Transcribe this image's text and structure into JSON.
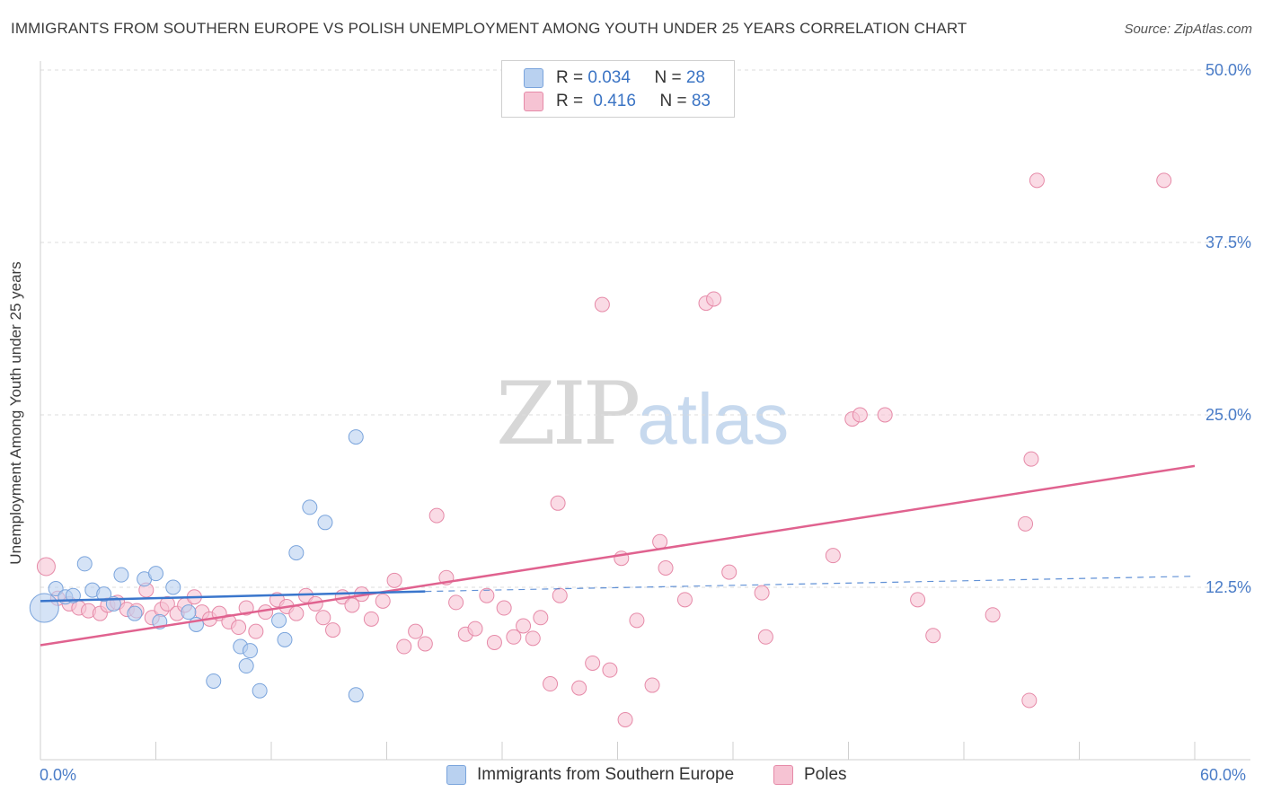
{
  "title": "IMMIGRANTS FROM SOUTHERN EUROPE VS POLISH UNEMPLOYMENT AMONG YOUTH UNDER 25 YEARS CORRELATION CHART",
  "source": "Source: ZipAtlas.com",
  "watermark": {
    "part1": "ZIP",
    "part2": "atlas"
  },
  "legend": {
    "row1": {
      "r_label": "R = ",
      "r_value": "0.034",
      "n_label": "N = ",
      "n_value": "28"
    },
    "row2": {
      "r_label": "R = ",
      "r_value": "0.416",
      "n_label": "N = ",
      "n_value": "83"
    }
  },
  "x_axis": {
    "min_label": "0.0%",
    "max_label": "60.0%"
  },
  "bottom_legend": [
    "Immigrants from Southern Europe",
    "Poles"
  ],
  "colors": {
    "blue_fill": "#b9d1f0",
    "blue_stroke": "#7aa4dc",
    "blue_line": "#3a76cc",
    "pink_fill": "#f6c3d3",
    "pink_stroke": "#e68aa8",
    "pink_line": "#e0628f",
    "grid": "#dcdcdc",
    "tick_text": "#4a7cc7"
  },
  "chart_data": {
    "type": "scatter",
    "title": "IMMIGRANTS FROM SOUTHERN EUROPE VS POLISH UNEMPLOYMENT AMONG YOUTH UNDER 25 YEARS CORRELATION CHART",
    "xlabel": "",
    "ylabel": "Unemployment Among Youth under 25 years",
    "xlim": [
      0,
      60
    ],
    "ylim": [
      0,
      50
    ],
    "y_ticks": [
      12.5,
      25.0,
      37.5,
      50.0
    ],
    "y_tick_labels": [
      "12.5%",
      "25.0%",
      "37.5%",
      "50.0%"
    ],
    "grid": true,
    "legend_position": "top-center",
    "series": [
      {
        "name": "Immigrants from Southern Europe",
        "color": "#7aa4dc",
        "r": 0.034,
        "n": 28,
        "trend": {
          "x": [
            0,
            20
          ],
          "y": [
            11.5,
            12.2
          ],
          "dashed_extension": {
            "x": [
              20,
              60
            ],
            "y": [
              12.2,
              13.3
            ]
          }
        },
        "points": [
          [
            0.2,
            11.0,
            16
          ],
          [
            0.8,
            12.4,
            8
          ],
          [
            1.3,
            11.8,
            8
          ],
          [
            1.7,
            11.9,
            8
          ],
          [
            2.3,
            14.2,
            8
          ],
          [
            2.7,
            12.3,
            8
          ],
          [
            3.3,
            12.0,
            8
          ],
          [
            3.8,
            11.3,
            8
          ],
          [
            4.2,
            13.4,
            8
          ],
          [
            4.9,
            10.6,
            8
          ],
          [
            5.4,
            13.1,
            8
          ],
          [
            6.0,
            13.5,
            8
          ],
          [
            6.2,
            10.0,
            8
          ],
          [
            6.9,
            12.5,
            8
          ],
          [
            7.7,
            10.7,
            8
          ],
          [
            8.1,
            9.8,
            8
          ],
          [
            9.0,
            5.7,
            8
          ],
          [
            10.4,
            8.2,
            8
          ],
          [
            10.7,
            6.8,
            8
          ],
          [
            10.9,
            7.9,
            8
          ],
          [
            11.4,
            5.0,
            8
          ],
          [
            12.4,
            10.1,
            8
          ],
          [
            12.7,
            8.7,
            8
          ],
          [
            13.3,
            15.0,
            8
          ],
          [
            14.0,
            18.3,
            8
          ],
          [
            14.8,
            17.2,
            8
          ],
          [
            16.4,
            23.4,
            8
          ],
          [
            16.4,
            4.7,
            8
          ]
        ]
      },
      {
        "name": "Poles",
        "color": "#e68aa8",
        "r": 0.416,
        "n": 83,
        "trend": {
          "x": [
            0,
            60
          ],
          "y": [
            8.3,
            21.3
          ]
        },
        "points": [
          [
            0.3,
            14.0,
            10
          ],
          [
            0.9,
            11.7,
            8
          ],
          [
            1.5,
            11.3,
            8
          ],
          [
            2.0,
            11.0,
            8
          ],
          [
            2.5,
            10.8,
            8
          ],
          [
            3.1,
            10.6,
            8
          ],
          [
            3.5,
            11.2,
            8
          ],
          [
            4.0,
            11.4,
            8
          ],
          [
            4.5,
            10.9,
            8
          ],
          [
            5.0,
            10.8,
            8
          ],
          [
            5.5,
            12.3,
            8
          ],
          [
            5.8,
            10.3,
            8
          ],
          [
            6.3,
            10.9,
            8
          ],
          [
            6.6,
            11.3,
            8
          ],
          [
            7.1,
            10.6,
            8
          ],
          [
            7.5,
            11.2,
            8
          ],
          [
            8.0,
            11.8,
            8
          ],
          [
            8.4,
            10.7,
            8
          ],
          [
            8.8,
            10.2,
            8
          ],
          [
            9.3,
            10.6,
            8
          ],
          [
            9.8,
            10.0,
            8
          ],
          [
            10.3,
            9.6,
            8
          ],
          [
            10.7,
            11.0,
            8
          ],
          [
            11.2,
            9.3,
            8
          ],
          [
            11.7,
            10.7,
            8
          ],
          [
            12.3,
            11.6,
            8
          ],
          [
            12.8,
            11.1,
            8
          ],
          [
            13.3,
            10.6,
            8
          ],
          [
            13.8,
            11.9,
            8
          ],
          [
            14.3,
            11.3,
            8
          ],
          [
            14.7,
            10.3,
            8
          ],
          [
            15.2,
            9.4,
            8
          ],
          [
            15.7,
            11.8,
            8
          ],
          [
            16.2,
            11.2,
            8
          ],
          [
            16.7,
            12.0,
            8
          ],
          [
            17.2,
            10.2,
            8
          ],
          [
            17.8,
            11.5,
            8
          ],
          [
            18.4,
            13.0,
            8
          ],
          [
            18.9,
            8.2,
            8
          ],
          [
            19.5,
            9.3,
            8
          ],
          [
            20.0,
            8.4,
            8
          ],
          [
            20.6,
            17.7,
            8
          ],
          [
            21.1,
            13.2,
            8
          ],
          [
            21.6,
            11.4,
            8
          ],
          [
            22.1,
            9.1,
            8
          ],
          [
            22.6,
            9.5,
            8
          ],
          [
            23.2,
            11.9,
            8
          ],
          [
            23.6,
            8.5,
            8
          ],
          [
            24.1,
            11.0,
            8
          ],
          [
            24.6,
            8.9,
            8
          ],
          [
            25.1,
            9.7,
            8
          ],
          [
            25.6,
            8.8,
            8
          ],
          [
            26.0,
            10.3,
            8
          ],
          [
            26.5,
            5.5,
            8
          ],
          [
            27.0,
            11.9,
            8
          ],
          [
            28.0,
            5.2,
            8
          ],
          [
            28.7,
            7.0,
            8
          ],
          [
            29.6,
            6.5,
            8
          ],
          [
            30.4,
            2.9,
            8
          ],
          [
            30.2,
            14.6,
            8
          ],
          [
            31.0,
            10.1,
            8
          ],
          [
            31.8,
            5.4,
            8
          ],
          [
            32.2,
            15.8,
            8
          ],
          [
            32.5,
            13.9,
            8
          ],
          [
            33.5,
            11.6,
            8
          ],
          [
            34.6,
            33.1,
            8
          ],
          [
            35.0,
            33.4,
            8
          ],
          [
            35.8,
            13.6,
            8
          ],
          [
            37.5,
            12.1,
            8
          ],
          [
            29.2,
            33.0,
            8
          ],
          [
            26.9,
            18.6,
            8
          ],
          [
            37.7,
            8.9,
            8
          ],
          [
            41.2,
            14.8,
            8
          ],
          [
            42.2,
            24.7,
            8
          ],
          [
            42.6,
            25.0,
            8
          ],
          [
            43.9,
            25.0,
            8
          ],
          [
            45.6,
            11.6,
            8
          ],
          [
            46.4,
            9.0,
            8
          ],
          [
            49.5,
            10.5,
            8
          ],
          [
            51.2,
            17.1,
            8
          ],
          [
            51.4,
            4.3,
            8
          ],
          [
            51.5,
            21.8,
            8
          ],
          [
            51.8,
            42.0,
            8
          ],
          [
            58.4,
            42.0,
            8
          ]
        ]
      }
    ]
  }
}
